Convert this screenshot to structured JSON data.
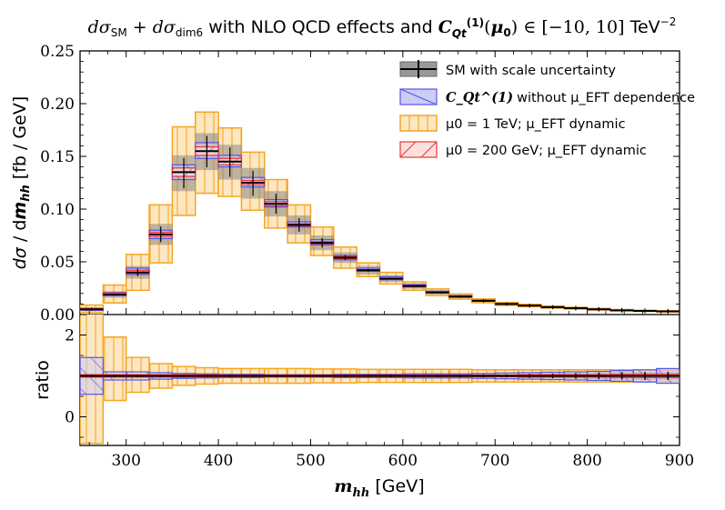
{
  "chart_data": {
    "type": "histogram",
    "title": "dσ_SM + dσ_dim6 with NLO QCD effects and C_Qt^(1)(μ0) ∈ [−10, 10] TeV^−2",
    "xlabel": "m_hh [GeV]",
    "ylabel": "dσ / dm_hh  [fb / GeV]",
    "ratio_ylabel": "ratio",
    "xlim": [
      250,
      900
    ],
    "ylim": [
      0,
      0.25
    ],
    "ratio_ylim": [
      -0.7,
      2.5
    ],
    "xticks": [
      300,
      400,
      500,
      600,
      700,
      800,
      900
    ],
    "xtick_labels": [
      "300",
      "400",
      "500",
      "600",
      "700",
      "800",
      "900"
    ],
    "yticks": [
      0,
      0.05,
      0.1,
      0.15,
      0.2,
      0.25
    ],
    "ytick_labels": [
      "0.00",
      "0.05",
      "0.10",
      "0.15",
      "0.20",
      "0.25"
    ],
    "ratio_yticks": [
      0,
      2
    ],
    "ratio_ytick_labels": [
      "0",
      "2"
    ],
    "bin_edges": [
      250,
      275,
      300,
      325,
      350,
      375,
      400,
      425,
      450,
      475,
      500,
      525,
      550,
      575,
      600,
      625,
      650,
      675,
      700,
      725,
      750,
      775,
      800,
      825,
      850,
      875,
      900
    ],
    "legend": {
      "sm": "SM with scale uncertainty",
      "novar": "without μ_EFT dependence",
      "mu1": "μ0 = 1 TeV; μ_EFT dynamic",
      "mu200": "μ0 = 200 GeV; μ_EFT dynamic",
      "coef": "C_Qt^(1)"
    },
    "series": [
      {
        "name": "SM with scale uncertainty",
        "color": "#000000",
        "fill": "#808080",
        "central": [
          0.005,
          0.019,
          0.04,
          0.076,
          0.135,
          0.155,
          0.145,
          0.125,
          0.105,
          0.085,
          0.068,
          0.054,
          0.042,
          0.034,
          0.027,
          0.021,
          0.017,
          0.013,
          0.01,
          0.0085,
          0.007,
          0.006,
          0.005,
          0.004,
          0.0035,
          0.003
        ],
        "lower": [
          0.004,
          0.016,
          0.034,
          0.066,
          0.117,
          0.137,
          0.128,
          0.11,
          0.093,
          0.076,
          0.061,
          0.049,
          0.038,
          0.031,
          0.0245,
          0.019,
          0.0155,
          0.012,
          0.009,
          0.0077,
          0.0063,
          0.0055,
          0.0045,
          0.0036,
          0.0031,
          0.0027
        ],
        "upper": [
          0.006,
          0.022,
          0.046,
          0.086,
          0.151,
          0.172,
          0.161,
          0.139,
          0.117,
          0.094,
          0.075,
          0.059,
          0.046,
          0.037,
          0.0295,
          0.023,
          0.0185,
          0.014,
          0.011,
          0.0093,
          0.0077,
          0.0065,
          0.0055,
          0.0044,
          0.0039,
          0.0033
        ],
        "ratio_err": [
          0.03,
          0.03,
          0.03,
          0.03,
          0.03,
          0.03,
          0.03,
          0.03,
          0.03,
          0.03,
          0.03,
          0.03,
          0.03,
          0.03,
          0.03,
          0.03,
          0.03,
          0.04,
          0.04,
          0.05,
          0.06,
          0.07,
          0.08,
          0.09,
          0.1,
          0.1
        ]
      },
      {
        "name": "C_Qt^(1) without μ_EFT dependence",
        "color": "#5555ee",
        "fill": "#ccccf5",
        "lower": [
          0.004,
          0.018,
          0.038,
          0.072,
          0.128,
          0.148,
          0.14,
          0.121,
          0.102,
          0.083,
          0.066,
          0.052,
          0.041,
          0.033,
          0.0262,
          0.0204,
          0.0165,
          0.0126,
          0.0097,
          0.0082,
          0.0068,
          0.0058,
          0.0048,
          0.0039,
          0.0034,
          0.0029
        ],
        "upper": [
          0.006,
          0.021,
          0.044,
          0.08,
          0.142,
          0.163,
          0.151,
          0.13,
          0.109,
          0.088,
          0.071,
          0.056,
          0.044,
          0.036,
          0.0284,
          0.0221,
          0.018,
          0.0136,
          0.0104,
          0.0089,
          0.0074,
          0.0063,
          0.0053,
          0.0042,
          0.0037,
          0.0032
        ],
        "ratio_lower": [
          0.55,
          0.9,
          0.9,
          0.92,
          0.94,
          0.95,
          0.96,
          0.96,
          0.97,
          0.97,
          0.97,
          0.96,
          0.96,
          0.96,
          0.95,
          0.95,
          0.95,
          0.94,
          0.93,
          0.92,
          0.91,
          0.9,
          0.89,
          0.87,
          0.85,
          0.82
        ],
        "ratio_upper": [
          1.45,
          1.1,
          1.1,
          1.08,
          1.06,
          1.05,
          1.04,
          1.04,
          1.03,
          1.03,
          1.03,
          1.04,
          1.04,
          1.04,
          1.05,
          1.05,
          1.05,
          1.06,
          1.07,
          1.08,
          1.09,
          1.1,
          1.11,
          1.13,
          1.15,
          1.18
        ]
      },
      {
        "name": "μ0 = 1 TeV; μ_EFT dynamic",
        "color": "#f5a623",
        "fill": "#fde7c2",
        "lower": [
          0.002,
          0.011,
          0.023,
          0.049,
          0.094,
          0.115,
          0.112,
          0.099,
          0.082,
          0.068,
          0.056,
          0.044,
          0.036,
          0.029,
          0.023,
          0.018,
          0.0146,
          0.0112,
          0.0087,
          0.0074,
          0.0061,
          0.0052,
          0.0043,
          0.0035,
          0.003,
          0.0025
        ],
        "upper": [
          0.009,
          0.028,
          0.057,
          0.104,
          0.178,
          0.192,
          0.177,
          0.154,
          0.128,
          0.104,
          0.083,
          0.064,
          0.049,
          0.04,
          0.031,
          0.0243,
          0.0195,
          0.0148,
          0.0114,
          0.0097,
          0.0081,
          0.0069,
          0.0058,
          0.0047,
          0.0041,
          0.0036
        ],
        "ratio_lower": [
          -0.65,
          0.4,
          0.6,
          0.7,
          0.77,
          0.8,
          0.82,
          0.82,
          0.82,
          0.82,
          0.83,
          0.83,
          0.84,
          0.84,
          0.84,
          0.84,
          0.84,
          0.85,
          0.85,
          0.85,
          0.85,
          0.85,
          0.85,
          0.85,
          0.86,
          0.86
        ],
        "ratio_upper": [
          2.6,
          1.95,
          1.45,
          1.3,
          1.23,
          1.2,
          1.18,
          1.18,
          1.18,
          1.18,
          1.17,
          1.17,
          1.16,
          1.16,
          1.16,
          1.16,
          1.16,
          1.15,
          1.15,
          1.15,
          1.15,
          1.15,
          1.15,
          1.15,
          1.14,
          1.14
        ]
      },
      {
        "name": "μ0 = 200 GeV; μ_EFT dynamic",
        "color": "#ee3333",
        "fill": "#fde0de",
        "lower": [
          0.0045,
          0.0185,
          0.039,
          0.074,
          0.131,
          0.151,
          0.142,
          0.123,
          0.103,
          0.084,
          0.067,
          0.053,
          0.0415,
          0.0335,
          0.0266,
          0.0207,
          0.0167,
          0.0128,
          0.0098,
          0.0083,
          0.0069,
          0.0059,
          0.0049,
          0.0039,
          0.0034,
          0.0029
        ],
        "upper": [
          0.0055,
          0.0205,
          0.042,
          0.078,
          0.139,
          0.159,
          0.148,
          0.127,
          0.107,
          0.086,
          0.069,
          0.055,
          0.0425,
          0.0345,
          0.0274,
          0.0213,
          0.0173,
          0.0132,
          0.0102,
          0.0087,
          0.0071,
          0.0061,
          0.0051,
          0.0041,
          0.0036,
          0.0031
        ],
        "ratio_lower": [
          0.97,
          0.97,
          0.97,
          0.97,
          0.97,
          0.97,
          0.98,
          0.98,
          0.98,
          0.98,
          0.98,
          0.98,
          0.98,
          0.98,
          0.98,
          0.98,
          0.98,
          0.98,
          0.98,
          0.97,
          0.97,
          0.97,
          0.97,
          0.96,
          0.96,
          0.96
        ],
        "ratio_upper": [
          1.03,
          1.03,
          1.03,
          1.03,
          1.03,
          1.03,
          1.02,
          1.02,
          1.02,
          1.02,
          1.02,
          1.02,
          1.02,
          1.02,
          1.02,
          1.02,
          1.02,
          1.02,
          1.02,
          1.03,
          1.03,
          1.03,
          1.03,
          1.04,
          1.04,
          1.04
        ]
      }
    ]
  }
}
